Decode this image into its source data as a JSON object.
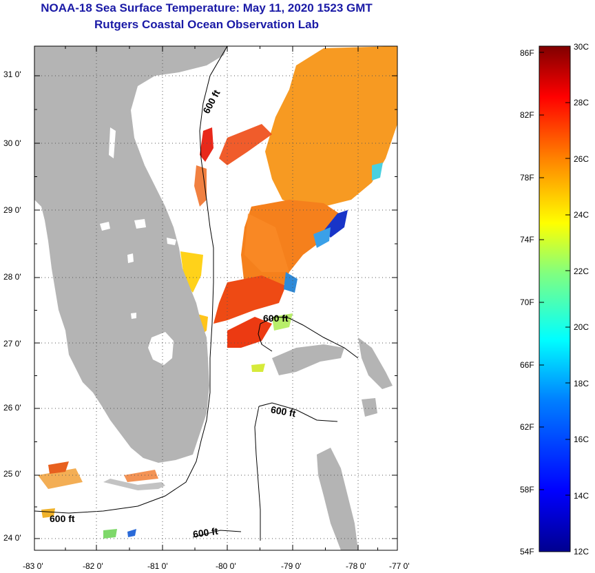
{
  "title": {
    "line1": "NOAA-18 Sea Surface Temperature:  May 11, 2020 1523 GMT",
    "line2": "Rutgers Coastal Ocean Observation Lab"
  },
  "map": {
    "lat_labels": [
      "31 0'",
      "30 0'",
      "29 0'",
      "28 0'",
      "27 0'",
      "26 0'",
      "25 0'",
      "24 0'"
    ],
    "lon_labels": [
      "-83 0'",
      "-82 0'",
      "-81 0'",
      "-80 0'",
      "-79 0'",
      "-78 0'",
      "-77 0'"
    ],
    "contour_label": "600 ft",
    "colors": {
      "land": "#b4b4b4",
      "ocean": "#ffffff",
      "contour": "#000000"
    }
  },
  "colorbar": {
    "fahrenheit_labels": [
      "86F",
      "82F",
      "78F",
      "74F",
      "70F",
      "66F",
      "62F",
      "58F",
      "54F"
    ],
    "celsius_labels": [
      "30C",
      "28C",
      "26C",
      "24C",
      "22C",
      "20C",
      "18C",
      "16C",
      "14C",
      "12C"
    ],
    "range_c": [
      12,
      30
    ],
    "colormap": [
      "#00008f",
      "#0000ff",
      "#0080ff",
      "#00ffff",
      "#80ff80",
      "#ffff00",
      "#ff8000",
      "#ff0000",
      "#800000"
    ]
  }
}
